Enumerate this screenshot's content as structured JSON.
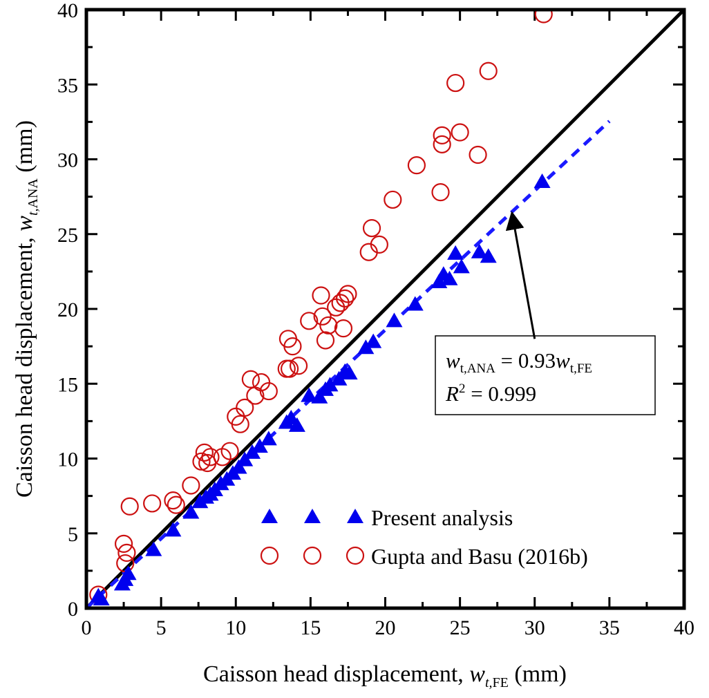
{
  "chart_data": {
    "type": "scatter",
    "xlabel_prefix": "Caisson head displacement, ",
    "xlabel_var": "w",
    "xlabel_sub": "t,",
    "xlabel_sub2": "FE",
    "xlabel_suffix": " (mm)",
    "ylabel_prefix": "Caisson head displacement, ",
    "ylabel_var": "w",
    "ylabel_sub": "t,",
    "ylabel_sub2": "ANA",
    "ylabel_suffix": " (mm)",
    "xlim": [
      0,
      40
    ],
    "ylim": [
      0,
      40
    ],
    "xticks": [
      "0",
      "5",
      "10",
      "15",
      "20",
      "25",
      "30",
      "35",
      "40"
    ],
    "yticks": [
      "0",
      "5",
      "10",
      "15",
      "20",
      "25",
      "30",
      "35",
      "40"
    ],
    "grid": false,
    "legend_position": "lower-right",
    "line_of_equality": {
      "x": [
        0,
        40
      ],
      "y": [
        0,
        40
      ],
      "color": "#000000"
    },
    "fit_line": {
      "x": [
        0,
        35
      ],
      "y": [
        0,
        32.55
      ],
      "color": "#1a1aff",
      "style": "dashed"
    },
    "annotation": {
      "eq_var1": "w",
      "eq_sub1": "t,ANA",
      "eq_mid": " = 0.93",
      "eq_var2": "w",
      "eq_sub2": "t,FE",
      "r2_var": "R",
      "r2_sup": "2",
      "r2_value": " = 0.999",
      "arrow_from": [
        30.0,
        18.0
      ],
      "arrow_to": [
        28.5,
        26.3
      ]
    },
    "series": [
      {
        "name": "Present analysis",
        "marker": "triangle",
        "color": "#0000ee",
        "x": [
          0.8,
          1.0,
          2.4,
          2.6,
          2.8,
          4.5,
          5.8,
          7.0,
          7.6,
          8.0,
          8.3,
          8.6,
          9.0,
          9.4,
          9.8,
          10.2,
          10.6,
          11.1,
          11.6,
          12.2,
          13.4,
          13.7,
          14.1,
          14.9,
          15.6,
          16.0,
          16.3,
          16.9,
          17.3,
          17.6,
          18.7,
          19.2,
          20.6,
          22.0,
          23.6,
          23.9,
          24.3,
          24.7,
          25.1,
          26.3,
          26.9,
          30.5
        ],
        "y": [
          0.8,
          0.6,
          1.6,
          1.9,
          2.3,
          3.9,
          5.2,
          6.4,
          7.1,
          7.4,
          7.6,
          7.9,
          8.3,
          8.6,
          9.0,
          9.4,
          9.9,
          10.4,
          10.8,
          11.3,
          12.4,
          12.7,
          12.2,
          14.2,
          14.1,
          14.6,
          14.9,
          15.3,
          15.8,
          15.7,
          17.4,
          17.8,
          19.2,
          20.3,
          21.8,
          22.3,
          22.0,
          23.7,
          22.8,
          23.8,
          23.5,
          28.5
        ]
      },
      {
        "name": "Gupta and Basu (2016b)",
        "marker": "circle",
        "color": "#cc1111",
        "x": [
          0.8,
          2.5,
          2.6,
          2.7,
          2.9,
          4.4,
          5.8,
          6.0,
          7.0,
          7.7,
          7.9,
          8.1,
          8.3,
          9.1,
          9.6,
          10.0,
          10.3,
          10.6,
          11.0,
          11.3,
          11.7,
          12.2,
          13.4,
          13.5,
          13.6,
          13.8,
          14.2,
          14.9,
          15.7,
          15.8,
          16.0,
          16.2,
          16.7,
          17.0,
          17.2,
          17.3,
          17.5,
          18.9,
          19.1,
          19.6,
          20.5,
          22.1,
          23.7,
          23.8,
          23.8,
          24.7,
          25.0,
          26.2,
          26.9,
          30.6
        ],
        "y": [
          0.9,
          4.3,
          3.0,
          3.7,
          6.8,
          7.0,
          7.2,
          6.9,
          8.2,
          9.8,
          10.4,
          9.7,
          10.1,
          10.1,
          10.5,
          12.8,
          12.3,
          13.4,
          15.3,
          14.2,
          15.1,
          14.5,
          16.0,
          18.0,
          16.0,
          17.5,
          16.2,
          19.2,
          20.9,
          19.5,
          17.9,
          18.9,
          20.1,
          20.4,
          18.7,
          20.7,
          21.0,
          23.8,
          25.4,
          24.3,
          27.3,
          29.6,
          27.8,
          31.0,
          31.6,
          35.1,
          31.8,
          30.3,
          35.9,
          39.7
        ]
      }
    ]
  }
}
